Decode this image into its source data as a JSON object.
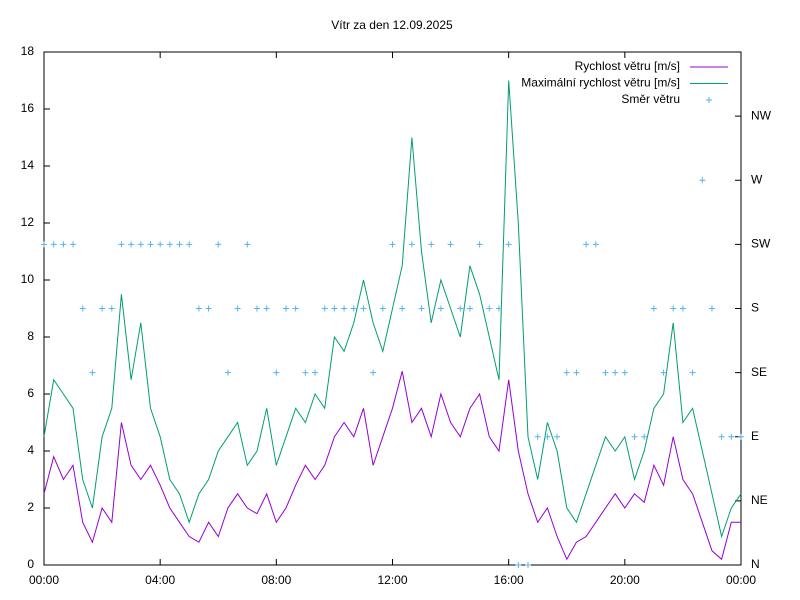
{
  "chart_data": {
    "type": "line",
    "title": "Vítr za den 12.09.2025",
    "x": [
      0,
      20,
      40,
      60,
      80,
      100,
      120,
      140,
      160,
      180,
      200,
      220,
      240,
      260,
      280,
      300,
      320,
      340,
      360,
      380,
      400,
      420,
      440,
      460,
      480,
      500,
      520,
      540,
      560,
      580,
      600,
      620,
      640,
      660,
      680,
      700,
      720,
      740,
      760,
      780,
      800,
      820,
      840,
      860,
      880,
      900,
      920,
      940,
      960,
      980,
      1000,
      1020,
      1040,
      1060,
      1080,
      1100,
      1120,
      1140,
      1160,
      1180,
      1200,
      1220,
      1240,
      1260,
      1280,
      1300,
      1320,
      1340,
      1360,
      1380,
      1400,
      1420,
      1440
    ],
    "xlim": [
      0,
      1440
    ],
    "xticks": [
      {
        "value": 0,
        "label": "00:00"
      },
      {
        "value": 240,
        "label": "04:00"
      },
      {
        "value": 480,
        "label": "08:00"
      },
      {
        "value": 720,
        "label": "12:00"
      },
      {
        "value": 960,
        "label": "16:00"
      },
      {
        "value": 1200,
        "label": "20:00"
      },
      {
        "value": 1440,
        "label": "00:00"
      }
    ],
    "ylim": [
      0,
      18
    ],
    "yticks": [
      0,
      2,
      4,
      6,
      8,
      10,
      12,
      14,
      16,
      18
    ],
    "y2lim": [
      0,
      360
    ],
    "y2ticks": [
      {
        "value": 0,
        "label": "N"
      },
      {
        "value": 45,
        "label": "NE"
      },
      {
        "value": 90,
        "label": "E"
      },
      {
        "value": 135,
        "label": "SE"
      },
      {
        "value": 180,
        "label": "S"
      },
      {
        "value": 225,
        "label": "SW"
      },
      {
        "value": 270,
        "label": "W"
      },
      {
        "value": 315,
        "label": "NW"
      }
    ],
    "legend": "top-right",
    "series": [
      {
        "name": "Rychlost větru [m/s]",
        "color": "#9400d3",
        "mode": "lines",
        "axis": "y",
        "values": [
          2.5,
          3.8,
          3.0,
          3.5,
          1.5,
          0.8,
          2.0,
          1.5,
          5.0,
          3.5,
          3.0,
          3.5,
          2.8,
          2.0,
          1.5,
          1.0,
          0.8,
          1.5,
          1.0,
          2.0,
          2.5,
          2.0,
          1.8,
          2.5,
          1.5,
          2.0,
          2.8,
          3.5,
          3.0,
          3.5,
          4.5,
          5.0,
          4.5,
          5.5,
          3.5,
          4.5,
          5.5,
          6.8,
          5.0,
          5.5,
          4.5,
          6.0,
          5.0,
          4.5,
          5.5,
          6.0,
          4.5,
          4.0,
          6.5,
          4.0,
          2.5,
          1.5,
          2.0,
          1.0,
          0.2,
          0.8,
          1.0,
          1.5,
          2.0,
          2.5,
          2.0,
          2.5,
          2.2,
          3.5,
          2.8,
          4.5,
          3.0,
          2.5,
          1.5,
          0.5,
          0.2,
          1.5,
          1.5
        ]
      },
      {
        "name": "Maximální rychlost větru [m/s]",
        "color": "#009e73",
        "mode": "lines",
        "axis": "y",
        "values": [
          4.5,
          6.5,
          6.0,
          5.5,
          3.0,
          2.0,
          4.5,
          5.5,
          9.5,
          6.5,
          8.5,
          5.5,
          4.5,
          3.0,
          2.5,
          1.5,
          2.5,
          3.0,
          4.0,
          4.5,
          5.0,
          3.5,
          4.0,
          5.5,
          3.5,
          4.5,
          5.5,
          5.0,
          6.0,
          5.5,
          8.0,
          7.5,
          8.5,
          10.0,
          8.5,
          7.5,
          9.0,
          10.5,
          15.0,
          11.0,
          8.5,
          10.0,
          9.0,
          8.0,
          10.5,
          9.5,
          8.0,
          6.5,
          17.0,
          12.0,
          4.5,
          3.0,
          5.0,
          4.0,
          2.0,
          1.5,
          2.5,
          3.5,
          4.5,
          4.0,
          4.5,
          3.0,
          4.0,
          5.5,
          6.0,
          8.5,
          5.0,
          5.5,
          4.0,
          2.5,
          1.0,
          2.0,
          2.5
        ]
      },
      {
        "name": "Směr větru",
        "color": "#56b4e9",
        "mode": "points",
        "axis": "y2",
        "values": [
          225,
          225,
          225,
          225,
          180,
          135,
          180,
          180,
          225,
          225,
          225,
          225,
          225,
          225,
          225,
          225,
          180,
          180,
          225,
          135,
          180,
          225,
          180,
          180,
          135,
          180,
          180,
          135,
          135,
          180,
          180,
          180,
          180,
          180,
          135,
          180,
          225,
          180,
          225,
          180,
          225,
          180,
          225,
          180,
          180,
          225,
          180,
          180,
          225,
          0,
          0,
          90,
          90,
          90,
          135,
          135,
          225,
          225,
          135,
          135,
          135,
          90,
          90,
          180,
          135,
          180,
          180,
          135,
          270,
          180,
          90,
          90,
          90
        ]
      }
    ]
  }
}
